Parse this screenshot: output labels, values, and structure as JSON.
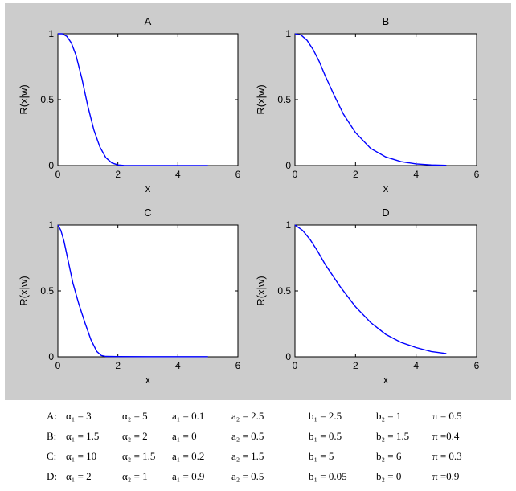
{
  "chart_data": [
    {
      "type": "line",
      "title": "A",
      "xlabel": "x",
      "ylabel": "R(x|w)",
      "xlim": [
        0,
        6
      ],
      "ylim": [
        0,
        1
      ],
      "xticks": [
        0,
        2,
        4,
        6
      ],
      "yticks": [
        0,
        0.5,
        1
      ],
      "xtick_labels": [
        "0",
        "2",
        "4",
        "6"
      ],
      "ytick_labels": [
        "0",
        "0.5",
        "1"
      ],
      "grid": false,
      "line_color": "#0000ff",
      "x": [
        0,
        0.15,
        0.3,
        0.45,
        0.6,
        0.8,
        1.0,
        1.2,
        1.4,
        1.6,
        1.8,
        2.0,
        2.2,
        2.5,
        3.0,
        4.0,
        5.0
      ],
      "y": [
        1.0,
        1.0,
        0.98,
        0.93,
        0.84,
        0.66,
        0.45,
        0.27,
        0.14,
        0.06,
        0.02,
        0.005,
        0.001,
        0,
        0,
        0,
        0
      ]
    },
    {
      "type": "line",
      "title": "B",
      "xlabel": "x",
      "ylabel": "R(x|w)",
      "xlim": [
        0,
        6
      ],
      "ylim": [
        0,
        1
      ],
      "xticks": [
        0,
        2,
        4,
        6
      ],
      "yticks": [
        0,
        0.5,
        1
      ],
      "xtick_labels": [
        "0",
        "2",
        "4",
        "6"
      ],
      "ytick_labels": [
        "0",
        "0.5",
        "1"
      ],
      "grid": false,
      "line_color": "#0000ff",
      "x": [
        0,
        0.2,
        0.4,
        0.6,
        0.8,
        1.0,
        1.3,
        1.6,
        2.0,
        2.5,
        3.0,
        3.5,
        4.0,
        4.5,
        5.0
      ],
      "y": [
        1.0,
        0.99,
        0.95,
        0.88,
        0.79,
        0.68,
        0.53,
        0.39,
        0.25,
        0.13,
        0.065,
        0.03,
        0.013,
        0.005,
        0.002
      ]
    },
    {
      "type": "line",
      "title": "C",
      "xlabel": "x",
      "ylabel": "R(x|w)",
      "xlim": [
        0,
        6
      ],
      "ylim": [
        0,
        1
      ],
      "xticks": [
        0,
        2,
        4,
        6
      ],
      "yticks": [
        0,
        0.5,
        1
      ],
      "xtick_labels": [
        "0",
        "2",
        "4",
        "6"
      ],
      "ytick_labels": [
        "0",
        "0.5",
        "1"
      ],
      "grid": false,
      "line_color": "#0000ff",
      "x": [
        0,
        0.1,
        0.2,
        0.35,
        0.5,
        0.7,
        0.9,
        1.1,
        1.3,
        1.45,
        1.6,
        2.0,
        3.0,
        4.0,
        5.0
      ],
      "y": [
        1.0,
        0.96,
        0.88,
        0.72,
        0.56,
        0.4,
        0.26,
        0.13,
        0.04,
        0.01,
        0.003,
        0.002,
        0.001,
        0.001,
        0.001
      ]
    },
    {
      "type": "line",
      "title": "D",
      "xlabel": "x",
      "ylabel": "R(x|w)",
      "xlim": [
        0,
        6
      ],
      "ylim": [
        0,
        1
      ],
      "xticks": [
        0,
        2,
        4,
        6
      ],
      "yticks": [
        0,
        0.5,
        1
      ],
      "xtick_labels": [
        "0",
        "2",
        "4",
        "6"
      ],
      "ytick_labels": [
        "0",
        "0.5",
        "1"
      ],
      "grid": false,
      "line_color": "#0000ff",
      "x": [
        0,
        0.25,
        0.5,
        0.75,
        1.0,
        1.5,
        2.0,
        2.5,
        3.0,
        3.5,
        4.0,
        4.5,
        5.0
      ],
      "y": [
        1.0,
        0.96,
        0.89,
        0.8,
        0.7,
        0.53,
        0.38,
        0.26,
        0.17,
        0.11,
        0.07,
        0.04,
        0.025
      ]
    }
  ],
  "params": [
    {
      "row": "A:",
      "alpha1": "α₁ = 3",
      "alpha2": "α₂ = 5",
      "a1": "a₁ = 0.1",
      "a2": "a₂ = 2.5",
      "b1": "b₁ = 2.5",
      "b2": "b₂ = 1",
      "pi": "π = 0.5"
    },
    {
      "row": "B:",
      "alpha1": "α₁ = 1.5",
      "alpha2": "α₂ = 2",
      "a1": "a₁ = 0",
      "a2": "a₂ = 0.5",
      "b1": "b₁ = 0.5",
      "b2": "b₂ = 1.5",
      "pi": "π =0.4"
    },
    {
      "row": "C:",
      "alpha1": "α₁ = 10",
      "alpha2": "α₂ = 1.5",
      "a1": "a₁ = 0.2",
      "a2": "a₂ = 1.5",
      "b1": "b₁ = 5",
      "b2": "b₂ = 6",
      "pi": "π = 0.3"
    },
    {
      "row": "D:",
      "alpha1": "α₁ = 2",
      "alpha2": "α₂ = 1",
      "a1": "a₁ = 0.9",
      "a2": "a₂ = 0.5",
      "b1": "b₁ = 0.05",
      "b2": "b₂ = 0",
      "pi": "π =0.9"
    }
  ]
}
